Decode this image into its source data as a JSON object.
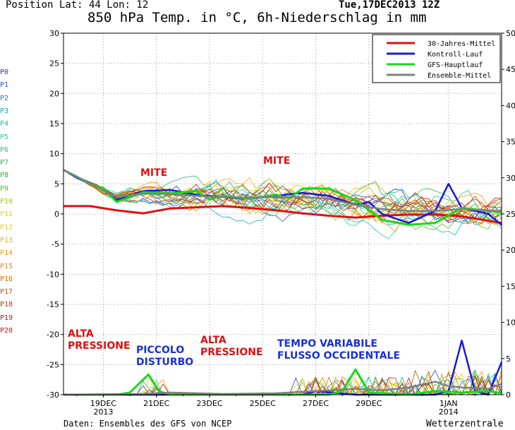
{
  "header": {
    "position": "Position   Lat: 44 Lon: 12",
    "title": "850 hPa Temp. in °C, 6h-Niederschlag in mm",
    "run": "Tue,17DEC2013 12Z"
  },
  "footer": {
    "source": "Daten: Ensembles des GFS von NCEP",
    "brand": "Wetterzentrale"
  },
  "members": [
    {
      "label": "P0",
      "color": "#3030c8"
    },
    {
      "label": "P1",
      "color": "#2850d0"
    },
    {
      "label": "P2",
      "color": "#1878d8"
    },
    {
      "label": "P3",
      "color": "#10a0d8"
    },
    {
      "label": "P4",
      "color": "#10b8c8"
    },
    {
      "label": "P5",
      "color": "#20c8b8"
    },
    {
      "label": "P6",
      "color": "#20c090"
    },
    {
      "label": "P7",
      "color": "#28b868"
    },
    {
      "label": "P8",
      "color": "#30b040"
    },
    {
      "label": "P9",
      "color": "#58c020"
    },
    {
      "label": "P10",
      "color": "#98d010"
    },
    {
      "label": "P11",
      "color": "#d8d800"
    },
    {
      "label": "P12",
      "color": "#f0c800"
    },
    {
      "label": "P13",
      "color": "#f0b000"
    },
    {
      "label": "P14",
      "color": "#f09800"
    },
    {
      "label": "P15",
      "color": "#e88000"
    },
    {
      "label": "P16",
      "color": "#d86800"
    },
    {
      "label": "P17",
      "color": "#c85000"
    },
    {
      "label": "P18",
      "color": "#b83808"
    },
    {
      "label": "P19",
      "color": "#a82010"
    },
    {
      "label": "P20",
      "color": "#c01818"
    }
  ],
  "annotations": [
    {
      "name": "anno-mite-1",
      "text": "MITE",
      "color": "#e01010"
    },
    {
      "name": "anno-mite-2",
      "text": "MITE",
      "color": "#e01010"
    },
    {
      "name": "anno-alta-pressione-1",
      "text": "ALTA\nPRESSIONE",
      "color": "#e01010"
    },
    {
      "name": "anno-piccolo-disturbo",
      "text": "PICCOLO\nDISTURBO",
      "color": "#1830d8"
    },
    {
      "name": "anno-alta-pressione-2",
      "text": "ALTA\nPRESSIONE",
      "color": "#e01010"
    },
    {
      "name": "anno-tempo-variabile",
      "text": "TEMPO VARIABILE\nFLUSSO OCCIDENTALE",
      "color": "#1830d8"
    }
  ],
  "chart_data": {
    "type": "line",
    "title": "850 hPa Temp. in °C, 6h-Niederschlag in mm",
    "x_unit": "days since 17DEC2013 12Z",
    "xlim": [
      0,
      16.5
    ],
    "x_ticks": [
      {
        "x": 1.5,
        "label": "19DEC",
        "sub": "2013"
      },
      {
        "x": 3.5,
        "label": "21DEC",
        "sub": ""
      },
      {
        "x": 5.5,
        "label": "23DEC",
        "sub": ""
      },
      {
        "x": 7.5,
        "label": "25DEC",
        "sub": ""
      },
      {
        "x": 9.5,
        "label": "27DEC",
        "sub": ""
      },
      {
        "x": 11.5,
        "label": "29DEC",
        "sub": ""
      },
      {
        "x": 14.5,
        "label": "1JAN",
        "sub": "2014"
      }
    ],
    "ylim_left": [
      -30,
      30
    ],
    "yticks_left": [
      30,
      25,
      20,
      15,
      10,
      5,
      0,
      -5,
      -10,
      -15,
      -20,
      -25,
      -30
    ],
    "ylim_right": [
      0,
      50
    ],
    "yticks_right": [
      50,
      45,
      40,
      35,
      30,
      25,
      20,
      15,
      10,
      5,
      0
    ],
    "grid": true,
    "legend_position": "top-right",
    "legend": [
      {
        "name": "30-Jahres-Mittel",
        "color": "#e01010"
      },
      {
        "name": "Kontroll-Lauf",
        "color": "#1818e0"
      },
      {
        "name": "GFS-Hauptlauf",
        "color": "#18d818"
      },
      {
        "name": "Ensemble-Mittel",
        "color": "#808080"
      }
    ],
    "series": [
      {
        "name": "30-Jahres-Mittel",
        "axis": "left",
        "color": "#e01010",
        "width": 3,
        "points": [
          [
            0,
            1.3
          ],
          [
            1,
            1.3
          ],
          [
            2,
            0.6
          ],
          [
            3,
            0.1
          ],
          [
            4,
            0.9
          ],
          [
            5,
            1.1
          ],
          [
            6,
            1.3
          ],
          [
            7,
            1.0
          ],
          [
            8,
            0.6
          ],
          [
            9,
            0.1
          ],
          [
            10,
            -0.3
          ],
          [
            11,
            -0.6
          ],
          [
            12,
            -0.3
          ],
          [
            13,
            -0.1
          ],
          [
            14,
            -0.1
          ],
          [
            15,
            -0.4
          ],
          [
            16.5,
            -1.5
          ]
        ]
      },
      {
        "name": "Kontroll-Lauf",
        "axis": "left",
        "color": "#1818e0",
        "width": 2.5,
        "points": [
          [
            0,
            7.3
          ],
          [
            0.5,
            6.0
          ],
          [
            1,
            5.0
          ],
          [
            1.5,
            4.0
          ],
          [
            2,
            2.3
          ],
          [
            2.5,
            3.0
          ],
          [
            3,
            3.8
          ],
          [
            4,
            4.0
          ],
          [
            5,
            3.2
          ],
          [
            6,
            2.8
          ],
          [
            7,
            2.5
          ],
          [
            8,
            3.0
          ],
          [
            9,
            3.5
          ],
          [
            10,
            3.0
          ],
          [
            11,
            1.5
          ],
          [
            11.5,
            2.0
          ],
          [
            12,
            0.0
          ],
          [
            13,
            -1.5
          ],
          [
            14,
            0.5
          ],
          [
            14.5,
            5.0
          ],
          [
            15,
            1.0
          ],
          [
            16,
            0.0
          ],
          [
            16.5,
            -1.8
          ]
        ]
      },
      {
        "name": "GFS-Hauptlauf",
        "axis": "left",
        "color": "#18d818",
        "width": 3,
        "points": [
          [
            0,
            7.3
          ],
          [
            0.5,
            6.2
          ],
          [
            1,
            5.0
          ],
          [
            1.5,
            4.2
          ],
          [
            2,
            2.0
          ],
          [
            2.5,
            2.8
          ],
          [
            3,
            3.6
          ],
          [
            4,
            3.4
          ],
          [
            5,
            3.8
          ],
          [
            5.5,
            2.4
          ],
          [
            6,
            3.0
          ],
          [
            7,
            2.5
          ],
          [
            8,
            3.2
          ],
          [
            8.5,
            2.6
          ],
          [
            9,
            4.2
          ],
          [
            10,
            4.2
          ],
          [
            11,
            2.3
          ],
          [
            12,
            -1.0
          ],
          [
            13,
            -1.8
          ],
          [
            14,
            -1.5
          ],
          [
            15,
            1.0
          ],
          [
            16,
            0.5
          ],
          [
            16.5,
            0.3
          ]
        ]
      },
      {
        "name": "Ensemble-Mittel",
        "axis": "left",
        "color": "#808080",
        "width": 2.5,
        "points": [
          [
            0,
            7.3
          ],
          [
            1,
            5.0
          ],
          [
            2,
            2.8
          ],
          [
            3,
            3.4
          ],
          [
            4,
            3.3
          ],
          [
            5,
            3.0
          ],
          [
            6,
            2.8
          ],
          [
            7,
            2.7
          ],
          [
            8,
            2.8
          ],
          [
            9,
            2.8
          ],
          [
            10,
            2.5
          ],
          [
            11,
            1.5
          ],
          [
            12,
            0.8
          ],
          [
            13,
            0.5
          ],
          [
            14,
            0.5
          ],
          [
            15,
            0.8
          ],
          [
            16.5,
            0.5
          ]
        ]
      },
      {
        "name": "Kontroll-Lauf",
        "axis": "right",
        "color": "#1818e0",
        "width": 2.5,
        "points": [
          [
            0,
            0
          ],
          [
            9,
            0
          ],
          [
            9.5,
            0.5
          ],
          [
            11,
            0
          ],
          [
            14,
            0
          ],
          [
            14.5,
            0.5
          ],
          [
            15,
            7.5
          ],
          [
            15.5,
            0.5
          ],
          [
            16,
            0
          ],
          [
            16.5,
            4.5
          ]
        ]
      },
      {
        "name": "GFS-Hauptlauf",
        "axis": "right",
        "color": "#18d818",
        "width": 3,
        "points": [
          [
            0,
            0
          ],
          [
            2,
            0
          ],
          [
            2.5,
            0.3
          ],
          [
            3.2,
            2.8
          ],
          [
            3.6,
            0.5
          ],
          [
            4,
            0
          ],
          [
            10,
            0
          ],
          [
            10.5,
            0.5
          ],
          [
            11,
            3.5
          ],
          [
            11.5,
            0.3
          ],
          [
            13,
            0
          ],
          [
            14,
            0.5
          ],
          [
            15,
            0.3
          ],
          [
            16,
            0.5
          ],
          [
            16.5,
            0.2
          ]
        ]
      },
      {
        "name": "Ensemble-Mittel",
        "axis": "right",
        "color": "#808080",
        "width": 2.5,
        "points": [
          [
            0,
            0
          ],
          [
            3,
            0.1
          ],
          [
            4,
            0.3
          ],
          [
            6,
            0.1
          ],
          [
            8,
            0.2
          ],
          [
            9,
            0.4
          ],
          [
            10,
            0.6
          ],
          [
            11,
            0.8
          ],
          [
            12,
            0.6
          ],
          [
            13,
            1.0
          ],
          [
            14,
            1.8
          ],
          [
            14.5,
            1.2
          ],
          [
            15,
            1.0
          ],
          [
            16,
            0.8
          ],
          [
            16.5,
            1.5
          ]
        ]
      }
    ]
  }
}
